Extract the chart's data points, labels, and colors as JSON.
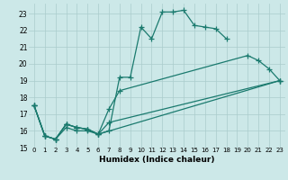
{
  "title": "",
  "xlabel": "Humidex (Indice chaleur)",
  "bg_color": "#cce8e8",
  "grid_color": "#aacccc",
  "line_color": "#1a7a6e",
  "xlim": [
    -0.5,
    23.5
  ],
  "ylim": [
    15,
    23.6
  ],
  "yticks": [
    15,
    16,
    17,
    18,
    19,
    20,
    21,
    22,
    23
  ],
  "xticks": [
    0,
    1,
    2,
    3,
    4,
    5,
    6,
    7,
    8,
    9,
    10,
    11,
    12,
    13,
    14,
    15,
    16,
    17,
    18,
    19,
    20,
    21,
    22,
    23
  ],
  "series": [
    {
      "x": [
        0,
        1,
        2,
        3,
        4,
        5,
        6,
        7,
        8,
        9,
        10,
        11,
        12,
        13,
        14,
        15,
        16,
        17,
        18
      ],
      "y": [
        17.5,
        15.7,
        15.5,
        16.4,
        16.2,
        16.1,
        15.8,
        16.0,
        19.2,
        19.2,
        22.2,
        21.5,
        23.1,
        23.1,
        23.2,
        22.3,
        22.2,
        22.1,
        21.5
      ]
    },
    {
      "x": [
        0,
        1,
        2,
        3,
        4,
        5,
        6,
        7,
        8,
        20,
        21,
        22,
        23
      ],
      "y": [
        17.5,
        15.7,
        15.5,
        16.4,
        16.2,
        16.1,
        15.8,
        17.3,
        18.4,
        20.5,
        20.2,
        19.7,
        19.0
      ]
    },
    {
      "x": [
        0,
        1,
        2,
        3,
        4,
        5,
        6,
        7,
        23
      ],
      "y": [
        17.5,
        15.7,
        15.5,
        16.4,
        16.2,
        16.1,
        15.8,
        16.5,
        19.0
      ]
    },
    {
      "x": [
        0,
        1,
        2,
        3,
        4,
        5,
        6,
        23
      ],
      "y": [
        17.5,
        15.7,
        15.5,
        16.2,
        16.0,
        16.0,
        15.8,
        19.0
      ]
    }
  ]
}
